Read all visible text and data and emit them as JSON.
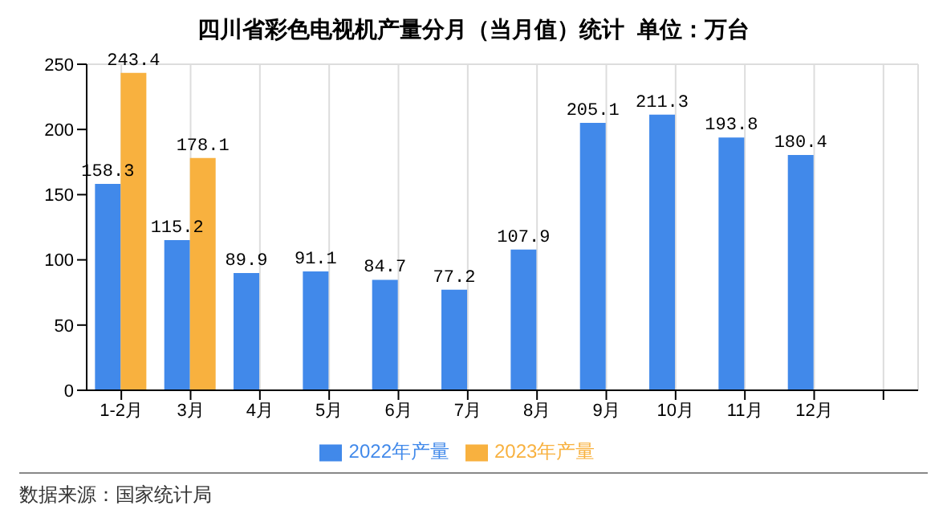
{
  "chart_data": {
    "type": "bar",
    "title": "四川省彩色电视机产量分月（当月值）统计  单位：万台",
    "categories": [
      "1-2月",
      "3月",
      "4月",
      "5月",
      "6月",
      "7月",
      "8月",
      "9月",
      "10月",
      "11月",
      "12月",
      null
    ],
    "series": [
      {
        "name": "2022年产量",
        "color": "#4189ea",
        "values": [
          158.3,
          115.2,
          89.9,
          91.1,
          84.7,
          77.2,
          107.9,
          205.1,
          211.3,
          193.8,
          180.4,
          null
        ]
      },
      {
        "name": "2023年产量",
        "color": "#f8b13f",
        "values": [
          243.4,
          178.1,
          null,
          null,
          null,
          null,
          null,
          null,
          null,
          null,
          null,
          null
        ]
      }
    ],
    "ylim": [
      0,
      250
    ],
    "yticks": [
      0,
      50,
      100,
      150,
      200,
      250
    ],
    "grid": true,
    "legend": "bottom",
    "data_labels": true,
    "annotations": [
      "数据来源：国家统计局"
    ]
  }
}
